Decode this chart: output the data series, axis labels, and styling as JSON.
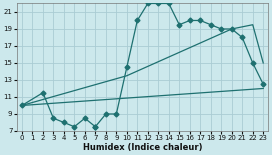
{
  "xlabel": "Humidex (Indice chaleur)",
  "bg_color": "#cce8ec",
  "grid_color": "#aaccd4",
  "line_color": "#1e7070",
  "xlim": [
    -0.5,
    23.5
  ],
  "ylim": [
    7,
    22
  ],
  "xticks": [
    0,
    1,
    2,
    3,
    4,
    5,
    6,
    7,
    8,
    9,
    10,
    11,
    12,
    13,
    14,
    15,
    16,
    17,
    18,
    19,
    20,
    21,
    22,
    23
  ],
  "yticks": [
    7,
    9,
    11,
    13,
    15,
    17,
    19,
    21
  ],
  "line1_x": [
    0,
    2,
    3,
    4,
    5,
    6,
    7,
    7,
    8,
    9,
    10,
    11,
    12,
    13,
    14,
    15,
    16,
    17,
    18,
    19,
    20,
    21,
    22,
    23
  ],
  "line1_y": [
    10,
    11.5,
    8.5,
    8,
    7.5,
    8.5,
    7.5,
    7.5,
    9,
    9,
    14.5,
    20,
    22,
    22,
    22,
    19.5,
    20,
    20,
    19.5,
    19,
    19,
    18,
    15,
    12.5
  ],
  "line2_x": [
    0,
    23
  ],
  "line2_y": [
    10,
    12
  ],
  "line3_x": [
    0,
    10,
    20,
    22,
    23
  ],
  "line3_y": [
    10,
    13.5,
    19,
    19.5,
    15
  ],
  "marker_size": 2.5,
  "linewidth": 0.9
}
